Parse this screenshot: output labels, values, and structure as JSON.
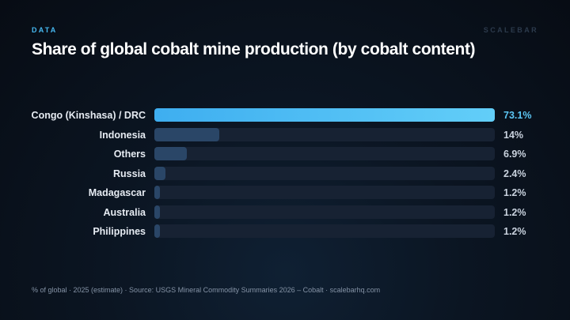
{
  "header": {
    "kicker": "DATA",
    "brand": "SCALEBAR",
    "title": "Share of global cobalt mine production (by cobalt content)"
  },
  "footer": {
    "note": "% of global · 2025 (estimate) · Source: USGS Mineral Commodity Summaries 2026 – Cobalt · scalebarhq.com"
  },
  "colors": {
    "highlight_bar": "#4cbcf4",
    "other_bar": "#2a4667",
    "track": "#172233",
    "highlight_value": "#5cc6f4"
  },
  "chart_data": {
    "type": "bar",
    "orientation": "horizontal",
    "title": "Share of global cobalt mine production (by cobalt content)",
    "xlabel": "",
    "ylabel": "",
    "unit": "% of global",
    "xlim": [
      0,
      73.1
    ],
    "grid": false,
    "legend": "none",
    "categories": [
      "Congo (Kinshasa) / DRC",
      "Indonesia",
      "Others",
      "Russia",
      "Madagascar",
      "Australia",
      "Philippines"
    ],
    "values": [
      73.1,
      14,
      6.9,
      2.4,
      1.2,
      1.2,
      1.2
    ],
    "value_labels": [
      "73.1%",
      "14%",
      "6.9%",
      "2.4%",
      "1.2%",
      "1.2%",
      "1.2%"
    ]
  }
}
